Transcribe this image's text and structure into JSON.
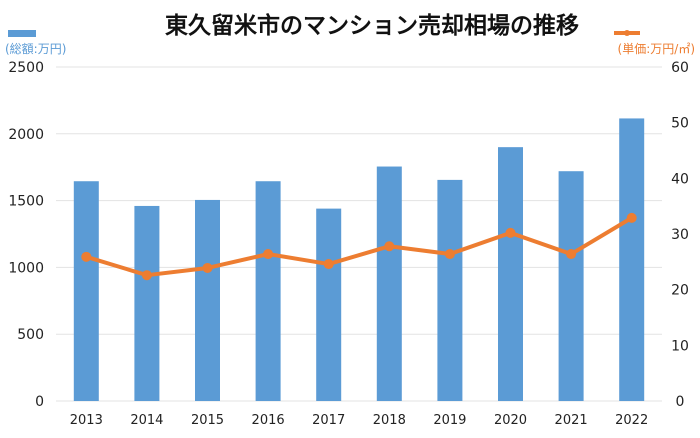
{
  "chart_data": {
    "type": "bar+line",
    "title": "東久留米市のマンション売却相場の推移",
    "categories": [
      "2013",
      "2014",
      "2015",
      "2016",
      "2017",
      "2018",
      "2019",
      "2020",
      "2021",
      "2022"
    ],
    "series": [
      {
        "name": "(総額:万円)",
        "type": "bar",
        "axis": "left",
        "color": "#5B9BD5",
        "values": [
          1645,
          1460,
          1505,
          1645,
          1440,
          1755,
          1655,
          1900,
          1720,
          2115
        ]
      },
      {
        "name": "(単価:万円/㎡)",
        "type": "line",
        "axis": "right",
        "color": "#ED7D31",
        "values": [
          25.9,
          22.6,
          23.9,
          26.4,
          24.6,
          27.8,
          26.4,
          30.2,
          26.4,
          32.9
        ]
      }
    ],
    "y_left": {
      "range": [
        0,
        2500
      ],
      "ticks": [
        "0",
        "500",
        "1000",
        "1500",
        "2000",
        "2500"
      ]
    },
    "y_right": {
      "range": [
        0,
        60
      ],
      "ticks": [
        "0",
        "10",
        "20",
        "30",
        "40",
        "50",
        "60"
      ]
    },
    "grid": true,
    "legend": "top-left and top-right"
  }
}
